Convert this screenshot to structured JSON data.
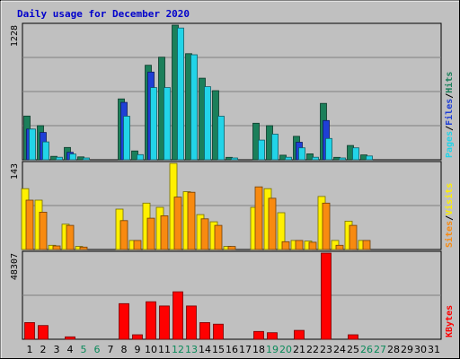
{
  "chart_data": {
    "type": "bar",
    "title": "Daily usage for December 2020",
    "x": [
      "1",
      "2",
      "3",
      "4",
      "5",
      "6",
      "7",
      "8",
      "9",
      "10",
      "11",
      "12",
      "13",
      "14",
      "15",
      "16",
      "17",
      "18",
      "19",
      "20",
      "21",
      "22",
      "23",
      "24",
      "25",
      "26",
      "27",
      "28",
      "29",
      "30",
      "31"
    ],
    "weekend_days": [
      "5",
      "6",
      "12",
      "13",
      "19",
      "20",
      "26",
      "27"
    ],
    "panels": [
      {
        "name": "hits-files-pages",
        "ymax_label": "1228",
        "ymax": 1228,
        "legend": [
          "Pages",
          "/",
          "Files",
          "/",
          "Hits"
        ],
        "series": [
          {
            "name": "Hits",
            "color": "#1b7f5a",
            "values": [
              399,
              311,
              31,
              112,
              26,
              0,
              0,
              555,
              80,
              862,
              936,
              1228,
              968,
              744,
              630,
              22,
              0,
              333,
              311,
              42,
              214,
              54,
              514,
              22,
              130,
              44,
              0,
              0,
              0,
              0,
              0
            ]
          },
          {
            "name": "Files",
            "color": "#1f3fd6",
            "values": [
              280,
              249,
              0,
              68,
              0,
              0,
              0,
              523,
              0,
              800,
              0,
              0,
              0,
              0,
              0,
              0,
              0,
              0,
              0,
              0,
              160,
              0,
              358,
              0,
              0,
              0,
              0,
              0,
              0,
              0,
              0
            ]
          },
          {
            "name": "Pages",
            "color": "#22d4e8",
            "values": [
              280,
              163,
              23,
              52,
              16,
              0,
              0,
              397,
              47,
              658,
              658,
              1202,
              958,
              666,
              397,
              16,
              0,
              179,
              233,
              23,
              109,
              23,
              194,
              16,
              109,
              34,
              0,
              0,
              0,
              0,
              0
            ]
          }
        ]
      },
      {
        "name": "visits-sites",
        "ymax_label": "143",
        "ymax": 143,
        "legend": [
          "Sites",
          "/",
          "Visits"
        ],
        "series": [
          {
            "name": "Visits",
            "color": "#fff000",
            "values": [
              101,
              82,
              7,
              42,
              5,
              0,
              0,
              67,
              15,
              77,
              70,
              143,
              96,
              58,
              46,
              5,
              0,
              70,
              101,
              61,
              15,
              14,
              88,
              15,
              47,
              15,
              0,
              0,
              0,
              0,
              0
            ]
          },
          {
            "name": "Sites",
            "color": "#f88a10",
            "values": [
              82,
              62,
              6,
              40,
              4,
              0,
              0,
              48,
              15,
              52,
              56,
              87,
              95,
              51,
              40,
              5,
              0,
              104,
              85,
              13,
              15,
              12,
              77,
              7,
              40,
              15,
              0,
              0,
              0,
              0,
              0
            ]
          }
        ]
      },
      {
        "name": "kbytes",
        "ymax_label": "48307",
        "ymax": 48307,
        "legend": [
          "KBytes"
        ],
        "series": [
          {
            "name": "KBytes",
            "color": "#ff0000",
            "values": [
              9370,
              7683,
              0,
              1335,
              0,
              0,
              0,
              19955,
              2541,
              21027,
              18660,
              26600,
              18660,
              9370,
              8470,
              0,
              0,
              4383,
              3678,
              0,
              4974,
              0,
              48307,
              0,
              2541,
              0,
              0,
              0,
              0,
              0,
              0
            ]
          }
        ]
      }
    ]
  }
}
